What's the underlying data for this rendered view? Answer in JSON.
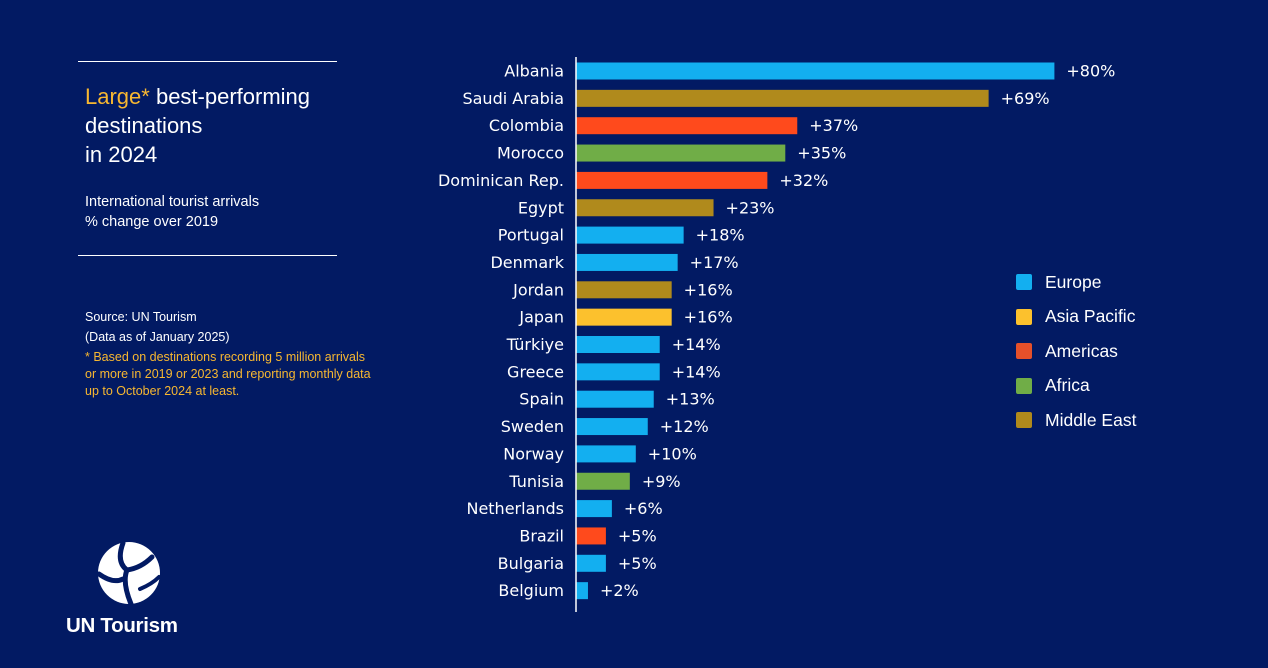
{
  "heading": {
    "accent": "Large*",
    "line1_rest": " best-performing",
    "line2": "destinations",
    "line3": "in 2024"
  },
  "subtitle": {
    "line1": "International tourist arrivals",
    "line2": "% change over 2019"
  },
  "source": {
    "line1": "Source: UN Tourism",
    "line2": "(Data as of January 2025)",
    "note": "*  Based on destinations recording 5 million arrivals or more in 2019 or 2023 and reporting monthly data up to October 2024 at least."
  },
  "logo": {
    "icon": "un-tourism-logo-icon",
    "text": "UN Tourism"
  },
  "colors": {
    "background": "#021a63",
    "accent": "#f7b731"
  },
  "legend": [
    {
      "label": "Europe",
      "color": "#13aff0"
    },
    {
      "label": "Asia Pacific",
      "color": "#fcc12d"
    },
    {
      "label": "Americas",
      "color": "#e5502a"
    },
    {
      "label": "Africa",
      "color": "#70ad47"
    },
    {
      "label": "Middle East",
      "color": "#b08a1c"
    }
  ],
  "chart_data": {
    "type": "bar",
    "orientation": "horizontal",
    "xlim": [
      0,
      80
    ],
    "grid": false,
    "legend_position": "right",
    "categories": [
      "Albania",
      "Saudi Arabia",
      "Colombia",
      "Morocco",
      "Dominican Rep.",
      "Egypt",
      "Portugal",
      "Denmark",
      "Jordan",
      "Japan",
      "Türkiye",
      "Greece",
      "Spain",
      "Sweden",
      "Norway",
      "Tunisia",
      "Netherlands",
      "Brazil",
      "Bulgaria",
      "Belgium"
    ],
    "values": [
      80,
      69,
      37,
      35,
      32,
      23,
      18,
      17,
      16,
      16,
      14,
      14,
      13,
      12,
      10,
      9,
      6,
      5,
      5,
      2
    ],
    "labels": [
      "+80%",
      "+69%",
      "+37%",
      "+35%",
      "+32%",
      "+23%",
      "+18%",
      "+17%",
      "+16%",
      "+16%",
      "+14%",
      "+14%",
      "+13%",
      "+12%",
      "+10%",
      "+9%",
      "+6%",
      "+5%",
      "+5%",
      "+2%"
    ],
    "regions": [
      "Europe",
      "Middle East",
      "Americas",
      "Africa",
      "Americas",
      "Middle East",
      "Europe",
      "Europe",
      "Middle East",
      "Asia Pacific",
      "Europe",
      "Europe",
      "Europe",
      "Europe",
      "Europe",
      "Africa",
      "Europe",
      "Americas",
      "Europe",
      "Europe"
    ],
    "region_colors": {
      "Europe": "#13aff0",
      "Asia Pacific": "#fcc12d",
      "Americas": "#ff4a1c",
      "Africa": "#70ad47",
      "Middle East": "#b08a1c"
    }
  }
}
